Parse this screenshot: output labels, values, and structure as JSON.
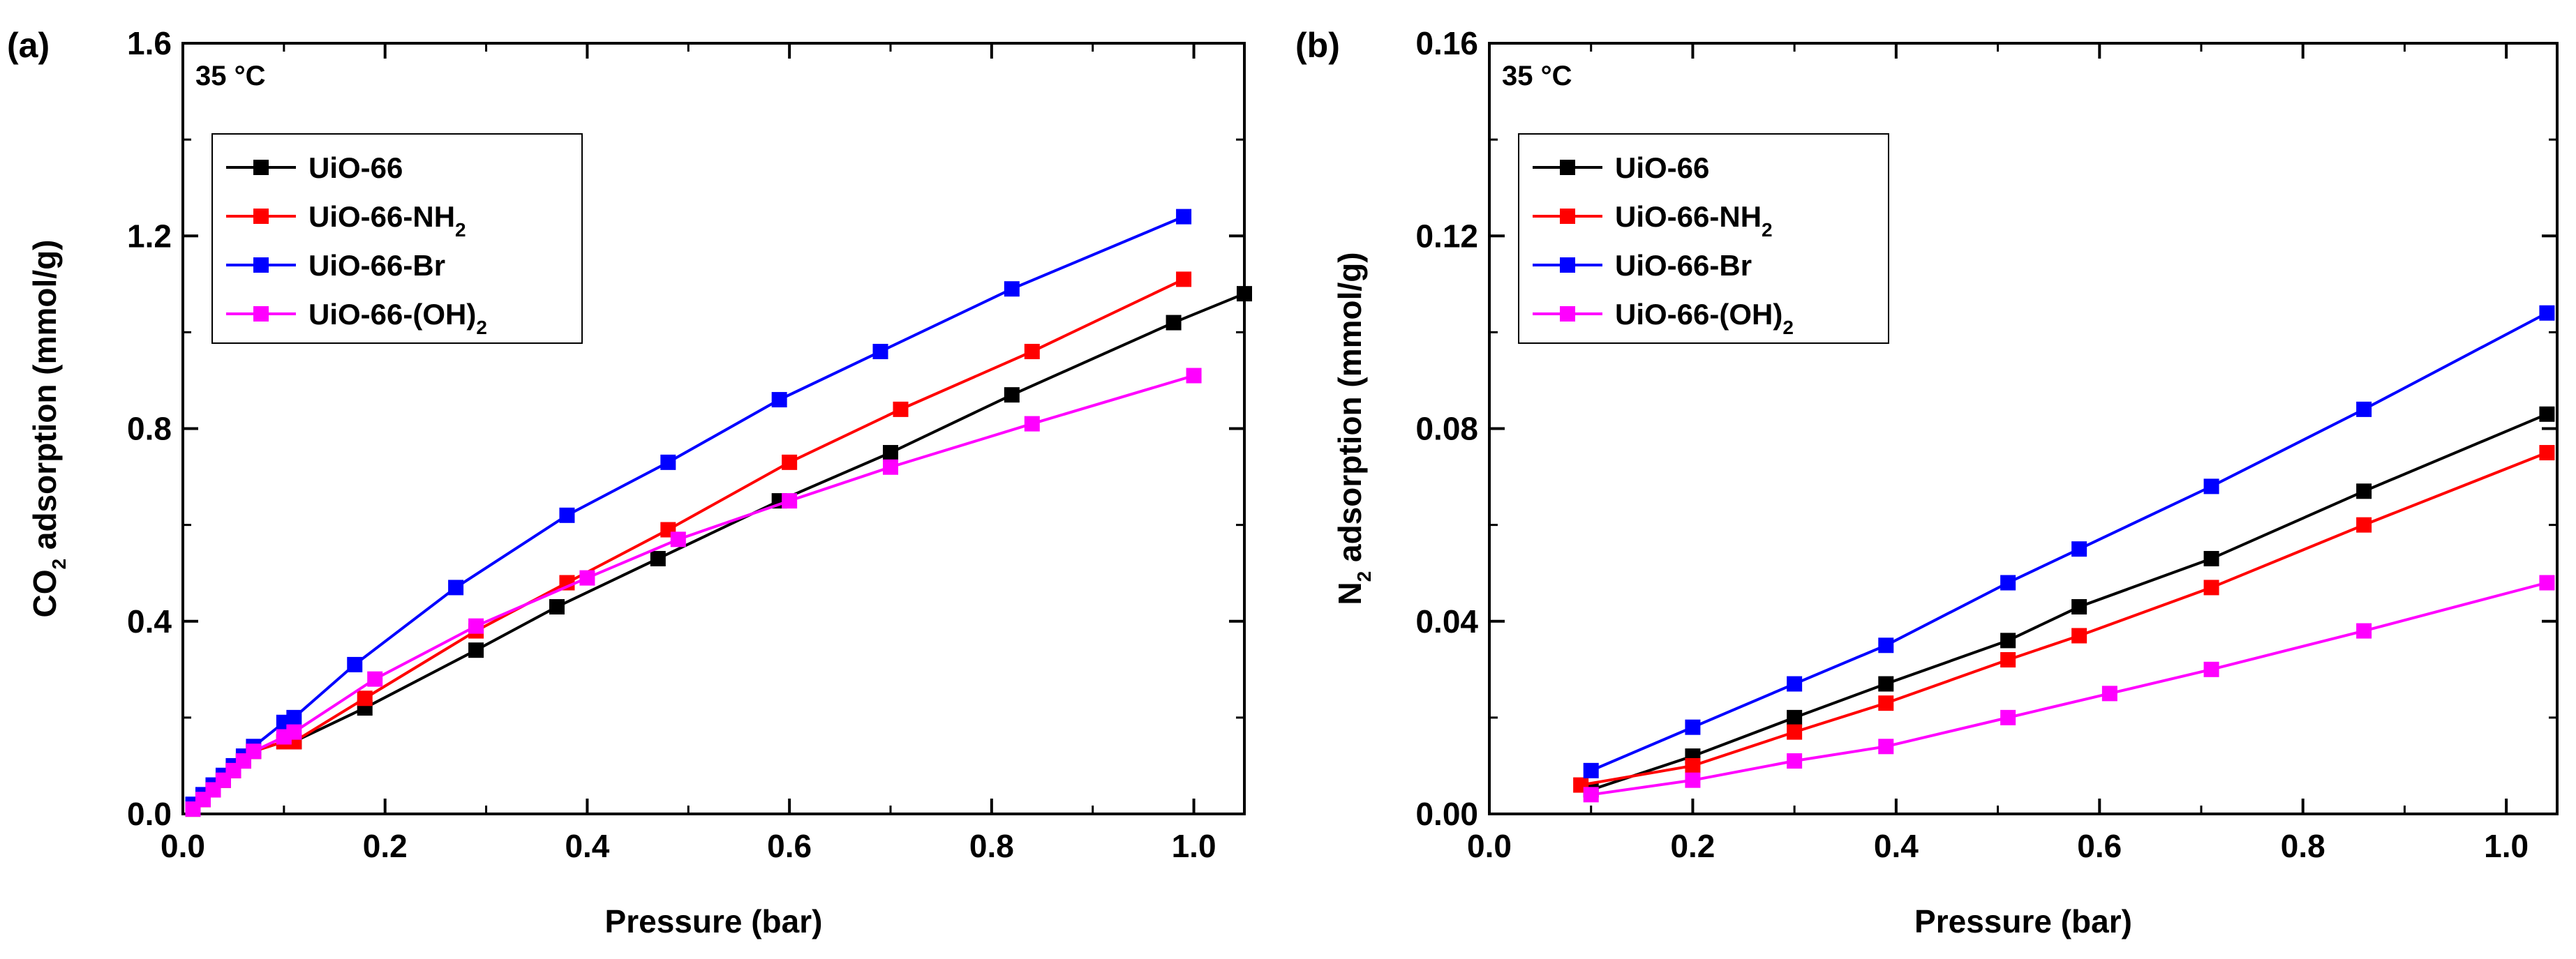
{
  "chart_data": [
    {
      "panel": "(a)",
      "type": "line",
      "annotation": "35 °C",
      "xlabel": "Pressure (bar)",
      "ylabel": {
        "prefix": "CO",
        "sub": "2",
        "suffix": " adsorption (mmol/g)"
      },
      "xlim": [
        0.0,
        1.05
      ],
      "ylim": [
        0.0,
        1.6
      ],
      "xticks": [
        "0.0",
        "0.2",
        "0.4",
        "0.6",
        "0.8",
        "1.0"
      ],
      "yticks": [
        "0.0",
        "0.4",
        "0.8",
        "1.2",
        "1.6"
      ],
      "legend_position": "upper-left",
      "series": [
        {
          "label": "UiO-66",
          "sub": "",
          "after": "",
          "color": "#000000",
          "x": [
            0.01,
            0.02,
            0.03,
            0.04,
            0.05,
            0.06,
            0.07,
            0.1,
            0.11,
            0.18,
            0.29,
            0.37,
            0.47,
            0.59,
            0.7,
            0.82,
            0.98,
            1.05
          ],
          "y": [
            0.01,
            0.03,
            0.05,
            0.07,
            0.09,
            0.11,
            0.13,
            0.15,
            0.15,
            0.22,
            0.34,
            0.43,
            0.53,
            0.65,
            0.75,
            0.87,
            1.02,
            1.08
          ]
        },
        {
          "label": "UiO-66-NH",
          "sub": "2",
          "after": "",
          "color": "#ff0000",
          "x": [
            0.01,
            0.02,
            0.03,
            0.04,
            0.05,
            0.06,
            0.07,
            0.1,
            0.11,
            0.18,
            0.29,
            0.38,
            0.48,
            0.6,
            0.71,
            0.84,
            0.99
          ],
          "y": [
            0.01,
            0.03,
            0.05,
            0.07,
            0.09,
            0.11,
            0.13,
            0.15,
            0.15,
            0.24,
            0.38,
            0.48,
            0.59,
            0.73,
            0.84,
            0.96,
            1.11
          ]
        },
        {
          "label": "UiO-66-Br",
          "sub": "",
          "after": "",
          "color": "#0000ff",
          "x": [
            0.01,
            0.02,
            0.03,
            0.04,
            0.05,
            0.06,
            0.07,
            0.1,
            0.11,
            0.17,
            0.27,
            0.38,
            0.48,
            0.59,
            0.69,
            0.82,
            0.99
          ],
          "y": [
            0.02,
            0.04,
            0.06,
            0.08,
            0.1,
            0.12,
            0.14,
            0.19,
            0.2,
            0.31,
            0.47,
            0.62,
            0.73,
            0.86,
            0.96,
            1.09,
            1.24
          ]
        },
        {
          "label": "UiO-66-(OH)",
          "sub": "2",
          "after": "",
          "color": "#ff00ff",
          "x": [
            0.01,
            0.02,
            0.03,
            0.04,
            0.05,
            0.06,
            0.07,
            0.1,
            0.11,
            0.19,
            0.29,
            0.4,
            0.49,
            0.6,
            0.7,
            0.84,
            1.0
          ],
          "y": [
            0.01,
            0.03,
            0.05,
            0.07,
            0.09,
            0.11,
            0.13,
            0.16,
            0.17,
            0.28,
            0.39,
            0.49,
            0.57,
            0.65,
            0.72,
            0.81,
            0.91
          ]
        }
      ]
    },
    {
      "panel": "(b)",
      "type": "line",
      "annotation": "35 °C",
      "xlabel": "Pressure (bar)",
      "ylabel": {
        "prefix": "N",
        "sub": "2",
        "suffix": " adsorption (mmol/g)"
      },
      "xlim": [
        0.0,
        1.05
      ],
      "ylim": [
        0.0,
        0.16
      ],
      "xticks": [
        "0.0",
        "0.2",
        "0.4",
        "0.6",
        "0.8",
        "1.0"
      ],
      "yticks": [
        "0.00",
        "0.04",
        "0.08",
        "0.12",
        "0.16"
      ],
      "legend_position": "upper-left",
      "series": [
        {
          "label": "UiO-66",
          "sub": "",
          "after": "",
          "color": "#000000",
          "x": [
            0.1,
            0.2,
            0.3,
            0.39,
            0.51,
            0.58,
            0.71,
            0.86,
            1.04
          ],
          "y": [
            0.005,
            0.012,
            0.02,
            0.027,
            0.036,
            0.043,
            0.053,
            0.067,
            0.083
          ]
        },
        {
          "label": "UiO-66-NH",
          "sub": "2",
          "after": "",
          "color": "#ff0000",
          "x": [
            0.09,
            0.2,
            0.3,
            0.39,
            0.51,
            0.58,
            0.71,
            0.86,
            1.04
          ],
          "y": [
            0.006,
            0.01,
            0.017,
            0.023,
            0.032,
            0.037,
            0.047,
            0.06,
            0.075
          ]
        },
        {
          "label": "UiO-66-Br",
          "sub": "",
          "after": "",
          "color": "#0000ff",
          "x": [
            0.1,
            0.2,
            0.3,
            0.39,
            0.51,
            0.58,
            0.71,
            0.86,
            1.04
          ],
          "y": [
            0.009,
            0.018,
            0.027,
            0.035,
            0.048,
            0.055,
            0.068,
            0.084,
            0.104
          ]
        },
        {
          "label": "UiO-66-(OH)",
          "sub": "2",
          "after": "",
          "color": "#ff00ff",
          "x": [
            0.1,
            0.2,
            0.3,
            0.39,
            0.51,
            0.61,
            0.71,
            0.86,
            1.04
          ],
          "y": [
            0.004,
            0.007,
            0.011,
            0.014,
            0.02,
            0.025,
            0.03,
            0.038,
            0.048
          ]
        }
      ]
    }
  ]
}
